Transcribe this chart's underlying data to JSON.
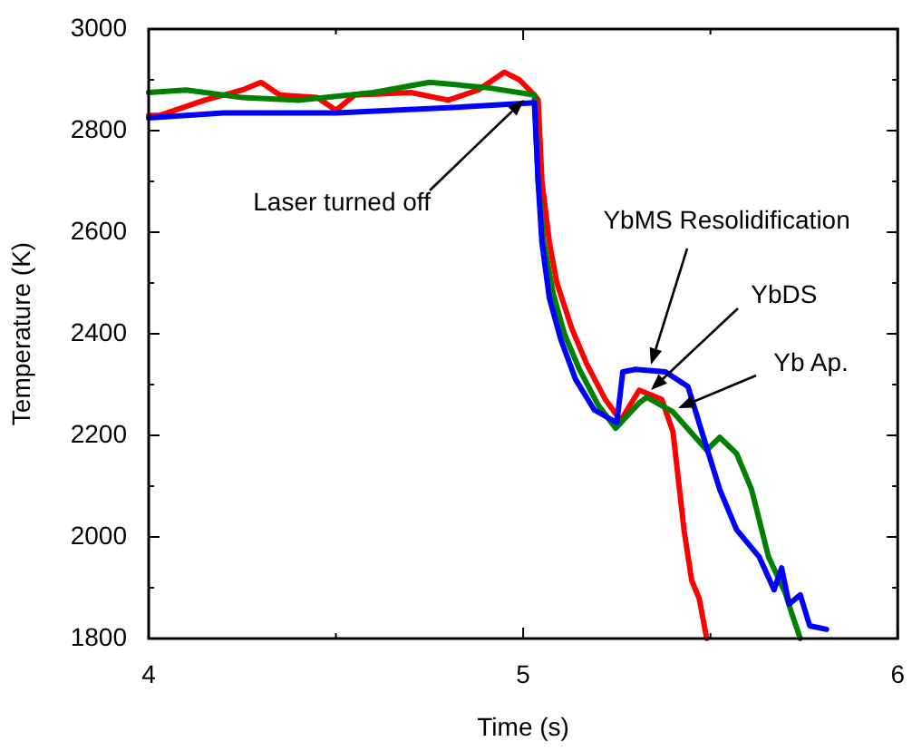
{
  "chart_data": {
    "type": "line",
    "xlabel": "Time (s)",
    "ylabel": "Temperature (K)",
    "xlim": [
      4,
      6
    ],
    "xticks": [
      4,
      {
        "value": 4.5,
        "label": null
      },
      5,
      {
        "value": 5.5,
        "label": null
      },
      6
    ],
    "ylim": [
      1800,
      3000
    ],
    "yticks": [
      1800,
      {
        "value": 1900,
        "label": null
      },
      2000,
      {
        "value": 2100,
        "label": null
      },
      2200,
      {
        "value": 2300,
        "label": null
      },
      2400,
      {
        "value": 2500,
        "label": null
      },
      2600,
      {
        "value": 2700,
        "label": null
      },
      2800,
      {
        "value": 2900,
        "label": null
      },
      3000
    ],
    "grid": false,
    "legend": false,
    "marker": "none",
    "line_style": "solid",
    "series": [
      {
        "color": "#0000ff",
        "x": [
          4,
          4.2,
          4.5,
          4.8,
          5.03,
          5.04,
          5.05,
          5.07,
          5.1,
          5.14,
          5.19,
          5.25,
          5.266,
          5.3,
          5.38,
          5.44,
          5.48,
          5.525,
          5.57,
          5.63,
          5.67,
          5.69,
          5.71,
          5.74,
          5.765,
          5.81
        ],
        "values": [
          2825,
          2835,
          2835,
          2845,
          2855,
          2700,
          2580,
          2470,
          2390,
          2310,
          2250,
          2225,
          2325,
          2330,
          2325,
          2296,
          2200,
          2093,
          2014,
          1961,
          1896,
          1939,
          1868,
          1886,
          1825,
          1818
        ]
      },
      {
        "color": "#008000",
        "x": [
          4,
          4.1,
          4.25,
          4.4,
          4.6,
          4.75,
          4.9,
          5.03,
          5.04,
          5.055,
          5.08,
          5.11,
          5.15,
          5.2,
          5.247,
          5.31,
          5.33,
          5.4,
          5.49,
          5.525,
          5.57,
          5.61,
          5.655,
          5.7,
          5.72,
          5.74
        ],
        "values": [
          2875,
          2880,
          2865,
          2860,
          2875,
          2895,
          2885,
          2870,
          2700,
          2580,
          2480,
          2400,
          2330,
          2260,
          2214,
          2264,
          2275,
          2246,
          2171,
          2196,
          2164,
          2093,
          1961,
          1889,
          1843,
          1800
        ]
      },
      {
        "color": "#ff0000",
        "x": [
          4,
          4.03,
          4.15,
          4.25,
          4.3,
          4.35,
          4.45,
          4.5,
          4.55,
          4.7,
          4.8,
          4.88,
          4.95,
          4.99,
          5.03,
          5.04,
          5.05,
          5.07,
          5.09,
          5.13,
          5.17,
          5.22,
          5.26,
          5.31,
          5.37,
          5.4,
          5.43,
          5.45,
          5.47,
          5.49
        ],
        "values": [
          2830,
          2830,
          2860,
          2880,
          2895,
          2870,
          2865,
          2840,
          2870,
          2875,
          2860,
          2880,
          2915,
          2900,
          2870,
          2860,
          2700,
          2580,
          2500,
          2410,
          2340,
          2270,
          2229,
          2289,
          2271,
          2207,
          2011,
          1914,
          1879,
          1800
        ]
      }
    ],
    "annotations": [
      {
        "text": "Laser turned off",
        "x": 5.0,
        "y": 2861
      },
      "YbMS Resolidification",
      {
        "text": "YbDS",
        "x": 5.343,
        "y": 2289
      },
      {
        "text": "Yb Ap.",
        "x": 5.415,
        "y": 2254
      }
    ]
  }
}
